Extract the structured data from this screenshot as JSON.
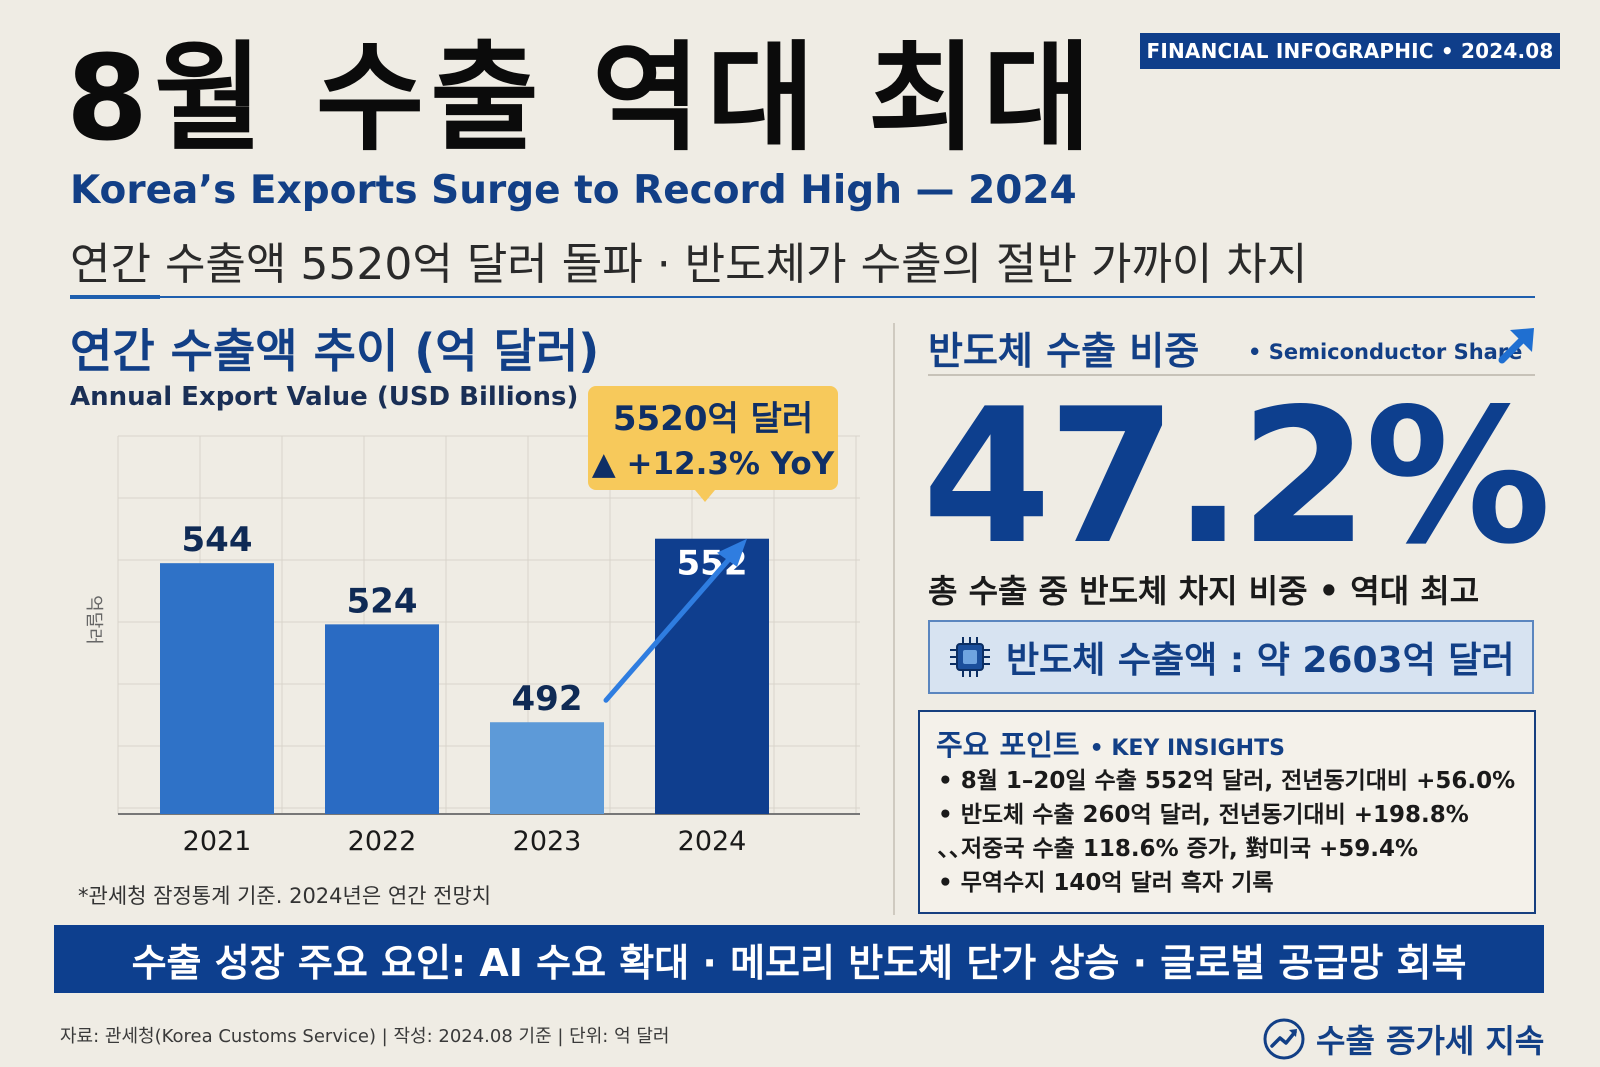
{
  "header": {
    "badge": "FINANCIAL INFOGRAPHIC • 2024.08",
    "title": "8월 수출 역대 최대",
    "subtitle_en": "Korea’s Exports Surge to Record High — 2024",
    "subtitle_kr": "연간 수출액 5520억 달러 돌파 · 반도체가 수출의 절반 가까이 차지"
  },
  "left_section": {
    "title": "연간 수출액 추이 (억 달러)",
    "subtitle": "Annual Export Value (USD Billions)",
    "y_axis_label": "억달러",
    "callout_line1": "5520억 달러",
    "callout_line2": "▲ +12.3% YoY",
    "source_note": "*관세청 잠정통계 기준. 2024년은 연간 전망치"
  },
  "chart_data": {
    "type": "bar",
    "title": "연간 수출액 추이 (억 달러)",
    "subtitle": "Annual Export Value (USD Billions)",
    "categories": [
      "2021",
      "2022",
      "2023",
      "2024"
    ],
    "values": [
      544,
      524,
      492,
      552
    ],
    "data_labels": [
      "544",
      "524",
      "492",
      "552"
    ],
    "ylabel": "억달러",
    "grid": true,
    "highlight_category": "2024",
    "annotations": [
      "5520억 달러",
      "▲ +12.3% YoY"
    ],
    "colors": {
      "2021": "#2f72c7",
      "2022": "#2a6bc3",
      "2023": "#5d9ad8",
      "2024": "#0f3e8e"
    }
  },
  "right_section": {
    "title": "반도체 수출 비중",
    "subtitle": "• Semiconductor Share",
    "share_value": "47.2%",
    "share_caption": "총 수출 중 반도체 차지 비중 • 역대 최고",
    "semiconductor_export": "반도체 수출액 : 약 2603억 달러",
    "icons": [
      "up-right-arrow-icon",
      "chip-icon"
    ]
  },
  "insights": {
    "title": "주요 포인트",
    "title_en": "• KEY INSIGHTS",
    "items": [
      "• 8월 1–20일 수출 552억 달러, 전년동기대비 +56.0%",
      "• 반도체 수출 260억 달러, 전년동기대비 +198.8%",
      "  ､､저중국 수출 118.6% 증가, 對미국 +59.4%",
      "• 무역수지 140억 달러 흑자 기록"
    ]
  },
  "banner": {
    "text": "수출 성장 주요 요인: AI 수요 확대 · 메모리 반도체 단가 상승 · 글로벌 공급망 회복"
  },
  "footer": {
    "note": "자료: 관세청(Korea Customs Service)  |  작성: 2024.08 기준  |  단위: 억 달러",
    "trend_label": "수출 증가세 지속"
  },
  "colors": {
    "navy": "#0d3f8e",
    "accent_blue": "#1f5fae",
    "callout_yellow": "#f7c95b",
    "background": "#efece4"
  }
}
